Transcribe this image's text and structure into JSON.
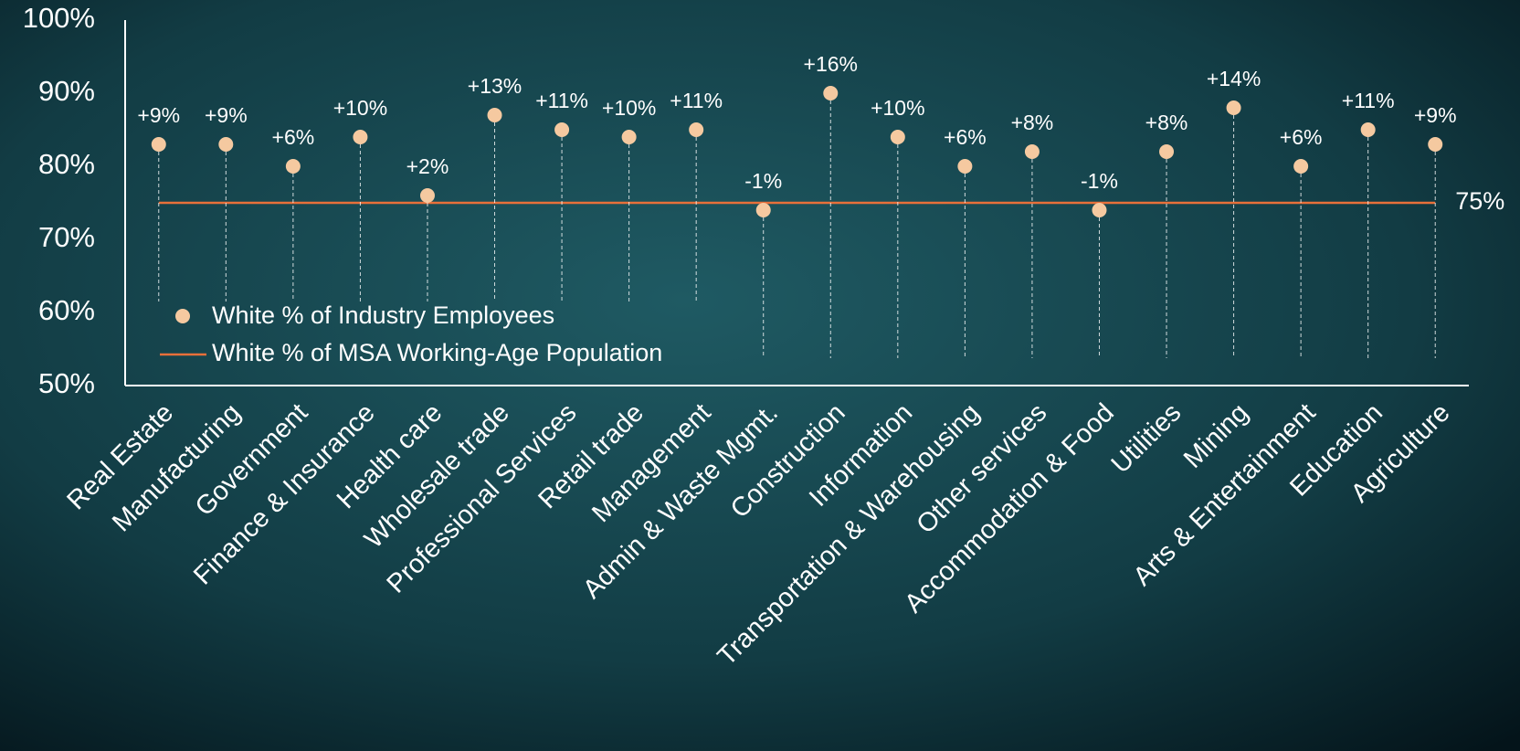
{
  "chart_data": {
    "type": "dot",
    "categories": [
      "Real Estate",
      "Manufacturing",
      "Government",
      "Finance & Insurance",
      "Health care",
      "Wholesale trade",
      "Professional Services",
      "Retail trade",
      "Management",
      "Admin & Waste Mgmt.",
      "Construction",
      "Information",
      "Transportation & Warehousing",
      "Other services",
      "Accommodation & Food",
      "Utilities",
      "Mining",
      "Arts & Entertainment",
      "Education",
      "Agriculture"
    ],
    "series": [
      {
        "name": "White % of Industry Employees",
        "color": "#f5c9a0",
        "values": [
          83,
          83,
          80,
          84,
          76,
          87,
          85,
          84,
          85,
          74,
          90,
          84,
          80,
          82,
          74,
          82,
          88,
          80,
          85,
          83
        ]
      }
    ],
    "annotations": [
      "+9%",
      "+9%",
      "+6%",
      "+10%",
      "+2%",
      "+13%",
      "+11%",
      "+10%",
      "+11%",
      "-1%",
      "+16%",
      "+10%",
      "+6%",
      "+8%",
      "-1%",
      "+8%",
      "+14%",
      "+6%",
      "+11%",
      "+9%"
    ],
    "reference_line": {
      "name": "White % of MSA Working-Age Population",
      "color": "#e8703a",
      "value": 75,
      "label": "75%"
    },
    "ylim": [
      50,
      100
    ],
    "yticks": [
      {
        "value": 50,
        "label": "50%"
      },
      {
        "value": 60,
        "label": "60%"
      },
      {
        "value": 70,
        "label": "70%"
      },
      {
        "value": 80,
        "label": "80%"
      },
      {
        "value": 90,
        "label": "90%"
      },
      {
        "value": 100,
        "label": "100%"
      }
    ],
    "legend": "lower left"
  }
}
